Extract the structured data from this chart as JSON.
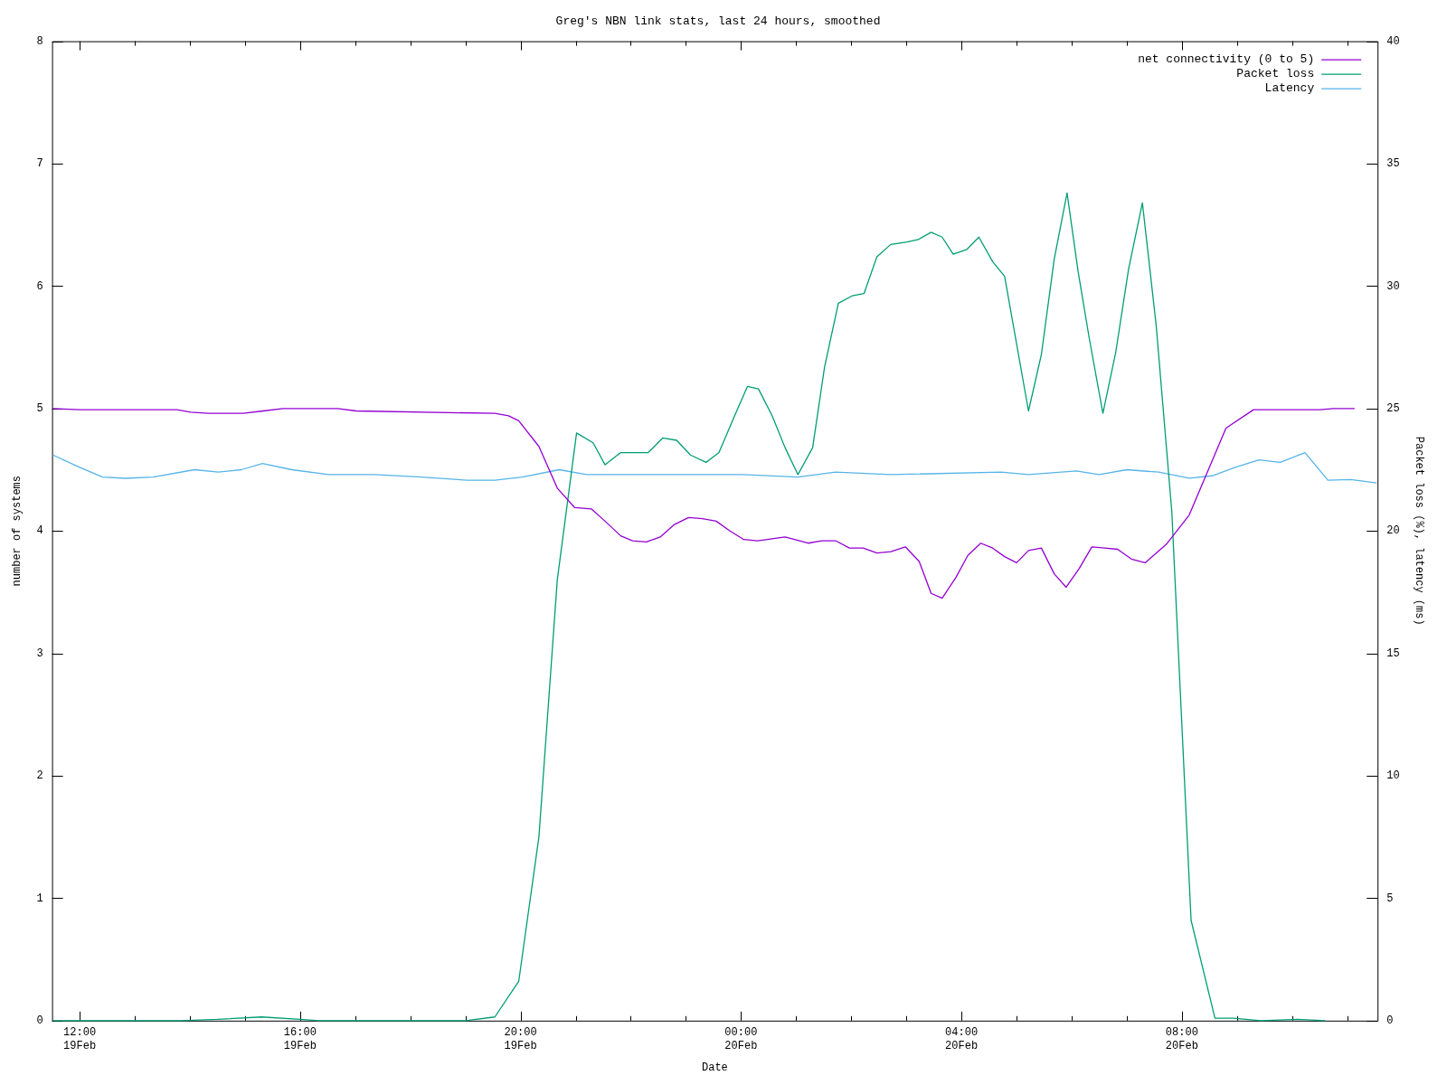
{
  "chart_data": {
    "type": "line",
    "title": "Greg's NBN link stats, last 24 hours, smoothed",
    "xlabel": "Date",
    "ylabel": "number of systems",
    "y2label": "Packet loss (%), latency (ms)",
    "xlim": [
      "--02-19T11:30",
      "--02-20T11:33"
    ],
    "ylim": [
      0,
      8
    ],
    "y2lim": [
      0,
      40
    ],
    "xticks": [
      {
        "value": "--02-19T12:00",
        "label": "12:00\n19Feb"
      },
      {
        "value": "--02-19T13:00",
        "label": null
      },
      {
        "value": "--02-19T14:00",
        "label": null
      },
      {
        "value": "--02-19T15:00",
        "label": null
      },
      {
        "value": "--02-19T16:00",
        "label": "16:00\n19Feb"
      },
      {
        "value": "--02-19T17:00",
        "label": null
      },
      {
        "value": "--02-19T18:00",
        "label": null
      },
      {
        "value": "--02-19T19:00",
        "label": null
      },
      {
        "value": "--02-19T20:00",
        "label": "20:00\n19Feb"
      },
      {
        "value": "--02-19T21:00",
        "label": null
      },
      {
        "value": "--02-19T22:00",
        "label": null
      },
      {
        "value": "--02-19T23:00",
        "label": null
      },
      {
        "value": "--02-20T00:00",
        "label": "00:00\n20Feb"
      },
      {
        "value": "--02-20T01:00",
        "label": null
      },
      {
        "value": "--02-20T02:00",
        "label": null
      },
      {
        "value": "--02-20T03:00",
        "label": null
      },
      {
        "value": "--02-20T04:00",
        "label": "04:00\n20Feb"
      },
      {
        "value": "--02-20T05:00",
        "label": null
      },
      {
        "value": "--02-20T06:00",
        "label": null
      },
      {
        "value": "--02-20T07:00",
        "label": null
      },
      {
        "value": "--02-20T08:00",
        "label": "08:00\n20Feb"
      },
      {
        "value": "--02-20T09:00",
        "label": null
      },
      {
        "value": "--02-20T10:00",
        "label": null
      },
      {
        "value": "--02-20T11:00",
        "label": null
      }
    ],
    "yticks": [
      0,
      1,
      2,
      3,
      4,
      5,
      6,
      7,
      8
    ],
    "y2ticks": [
      0,
      5,
      10,
      15,
      20,
      25,
      30,
      35,
      40
    ],
    "grid": false,
    "legend": "top right",
    "series": [
      {
        "name": "net connectivity (0 to 5)",
        "color": "#9400d3",
        "x": [
          "--02-19T11:31",
          "--02-19T12:00",
          "--02-19T13:46",
          "--02-19T14:01",
          "--02-19T14:20",
          "--02-19T14:58",
          "--02-19T15:20",
          "--02-19T15:41",
          "--02-19T16:41",
          "--02-19T17:01",
          "--02-19T19:32",
          "--02-19T19:47",
          "--02-19T19:58",
          "--02-19T20:20",
          "--02-19T20:40",
          "--02-19T20:59",
          "--02-19T21:17",
          "--02-19T21:32",
          "--02-19T21:49",
          "--02-19T22:02",
          "--02-19T22:17",
          "--02-19T22:32",
          "--02-19T22:47",
          "--02-19T23:03",
          "--02-19T23:18",
          "--02-19T23:33",
          "--02-19T23:48",
          "--02-20T00:03",
          "--02-20T00:18",
          "--02-20T00:48",
          "--02-20T01:13",
          "--02-20T01:28",
          "--02-20T01:43",
          "--02-20T01:58",
          "--02-20T02:13",
          "--02-20T02:28",
          "--02-20T02:43",
          "--02-20T02:59",
          "--02-20T03:14",
          "--02-20T03:27",
          "--02-20T03:39",
          "--02-20T03:54",
          "--02-20T04:07",
          "--02-20T04:21",
          "--02-20T04:34",
          "--02-20T04:47",
          "--02-20T05:00",
          "--02-20T05:13",
          "--02-20T05:27",
          "--02-20T05:41",
          "--02-20T05:54",
          "--02-20T06:08",
          "--02-20T06:22",
          "--02-20T06:36",
          "--02-20T06:50",
          "--02-20T07:05",
          "--02-20T07:20",
          "--02-20T07:43",
          "--02-20T08:08",
          "--02-20T08:48",
          "--02-20T09:18",
          "--02-20T10:30",
          "--02-20T10:45",
          "--02-20T11:08"
        ],
        "values": [
          5.0,
          4.99,
          4.99,
          4.97,
          4.96,
          4.96,
          4.98,
          5.0,
          5.0,
          4.98,
          4.96,
          4.94,
          4.9,
          4.69,
          4.35,
          4.19,
          4.18,
          4.08,
          3.96,
          3.92,
          3.91,
          3.95,
          4.05,
          4.11,
          4.1,
          4.08,
          4.0,
          3.93,
          3.92,
          3.95,
          3.9,
          3.92,
          3.92,
          3.86,
          3.86,
          3.82,
          3.83,
          3.87,
          3.75,
          3.49,
          3.45,
          3.62,
          3.8,
          3.9,
          3.86,
          3.79,
          3.74,
          3.84,
          3.86,
          3.65,
          3.54,
          3.69,
          3.87,
          3.86,
          3.85,
          3.77,
          3.74,
          3.89,
          4.13,
          4.84,
          4.99,
          4.99,
          5.0,
          5.0
        ]
      },
      {
        "name": "Packet loss",
        "color": "#009e73",
        "axis": "y2",
        "x": [
          "--02-19T11:31",
          "--02-19T13:50",
          "--02-19T14:30",
          "--02-19T15:18",
          "--02-19T16:00",
          "--02-19T16:21",
          "--02-19T19:00",
          "--02-19T19:32",
          "--02-19T19:58",
          "--02-19T20:20",
          "--02-19T20:40",
          "--02-19T21:01",
          "--02-19T21:19",
          "--02-19T21:32",
          "--02-19T21:49",
          "--02-19T22:04",
          "--02-19T22:19",
          "--02-19T22:35",
          "--02-19T22:50",
          "--02-19T23:05",
          "--02-19T23:22",
          "--02-19T23:36",
          "--02-19T23:53",
          "--02-20T00:07",
          "--02-20T00:19",
          "--02-20T00:34",
          "--02-20T00:48",
          "--02-20T01:02",
          "--02-20T01:18",
          "--02-20T01:31",
          "--02-20T01:46",
          "--02-20T02:01",
          "--02-20T02:14",
          "--02-20T02:28",
          "--02-20T02:43",
          "--02-20T03:01",
          "--02-20T03:13",
          "--02-20T03:27",
          "--02-20T03:39",
          "--02-20T03:51",
          "--02-20T04:06",
          "--02-20T04:19",
          "--02-20T04:34",
          "--02-20T04:47",
          "--02-20T05:13",
          "--02-20T05:27",
          "--02-20T05:41",
          "--02-20T05:55",
          "--02-20T06:07",
          "--02-20T06:19",
          "--02-20T06:34",
          "--02-20T06:48",
          "--02-20T07:02",
          "--02-20T07:17",
          "--02-20T07:32",
          "--02-20T07:49",
          "--02-20T08:10",
          "--02-20T08:36",
          "--02-20T08:56",
          "--02-20T09:26",
          "--02-20T10:06",
          "--02-20T10:36"
        ],
        "values": [
          0,
          0,
          0.05,
          0.15,
          0.05,
          0,
          0,
          0.15,
          1.6,
          7.5,
          18,
          24,
          23.6,
          22.7,
          23.2,
          23.2,
          23.2,
          23.8,
          23.7,
          23.1,
          22.8,
          23.2,
          24.7,
          25.9,
          25.8,
          24.7,
          23.4,
          22.3,
          23.4,
          26.7,
          29.3,
          29.6,
          29.7,
          31.2,
          31.7,
          31.8,
          31.9,
          32.2,
          32.0,
          31.3,
          31.5,
          32.0,
          31.0,
          30.4,
          24.9,
          27.2,
          31.1,
          33.8,
          30.6,
          27.9,
          24.8,
          27.3,
          30.7,
          33.4,
          28.4,
          20.8,
          4.1,
          0.1,
          0.1,
          0,
          0.05,
          0
        ]
      },
      {
        "name": "Latency",
        "color": "#56b4e9",
        "axis": "y2",
        "x": [
          "--02-19T11:31",
          "--02-19T12:00",
          "--02-19T12:25",
          "--02-19T12:50",
          "--02-19T13:20",
          "--02-19T14:05",
          "--02-19T14:31",
          "--02-19T14:56",
          "--02-19T15:19",
          "--02-19T15:51",
          "--02-19T16:31",
          "--02-19T17:22",
          "--02-19T18:12",
          "--02-19T19:02",
          "--02-19T19:32",
          "--02-19T20:02",
          "--02-19T20:42",
          "--02-19T21:12",
          "--02-19T22:22",
          "--02-20T00:02",
          "--02-20T01:02",
          "--02-20T01:43",
          "--02-20T02:43",
          "--02-20T04:43",
          "--02-20T05:13",
          "--02-20T06:05",
          "--02-20T06:30",
          "--02-20T07:00",
          "--02-20T07:35",
          "--02-20T08:08",
          "--02-20T08:33",
          "--02-20T08:58",
          "--02-20T09:24",
          "--02-20T09:47",
          "--02-20T10:14",
          "--02-20T10:39",
          "--02-20T11:04",
          "--02-20T11:32"
        ],
        "values": [
          23.1,
          22.6,
          22.2,
          22.15,
          22.2,
          22.5,
          22.4,
          22.5,
          22.75,
          22.5,
          22.3,
          22.3,
          22.2,
          22.07,
          22.07,
          22.2,
          22.5,
          22.3,
          22.3,
          22.3,
          22.2,
          22.4,
          22.3,
          22.4,
          22.3,
          22.45,
          22.3,
          22.5,
          22.4,
          22.15,
          22.25,
          22.6,
          22.9,
          22.8,
          23.2,
          22.07,
          22.1,
          21.96
        ]
      }
    ]
  }
}
